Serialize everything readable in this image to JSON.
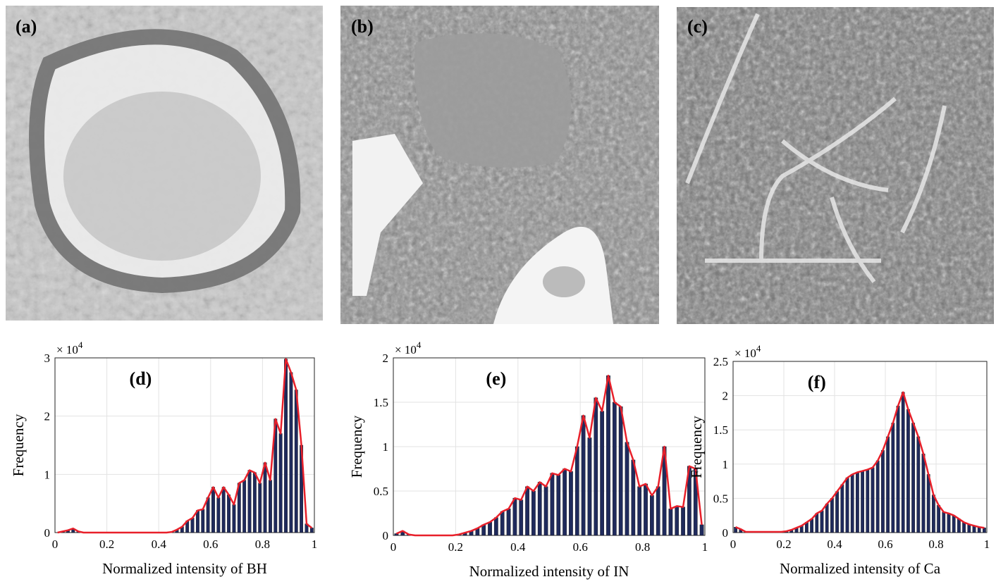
{
  "panels": [
    {
      "label": "(a)"
    },
    {
      "label": "(b)"
    },
    {
      "label": "(c)"
    }
  ],
  "chart_data": [
    {
      "type": "histogram",
      "title": "(d)",
      "y_multiplier": "× 10",
      "y_exponent": "4",
      "xlabel": "Normalized intensity of BH",
      "ylabel": "Frequency",
      "bins": [
        0,
        0.02,
        0.04,
        0.06,
        0.08,
        0.1,
        0.12,
        0.14,
        0.16,
        0.18,
        0.2,
        0.22,
        0.24,
        0.26,
        0.28,
        0.3,
        0.32,
        0.34,
        0.36,
        0.38,
        0.4,
        0.42,
        0.44,
        0.46,
        0.48,
        0.5,
        0.52,
        0.54,
        0.56,
        0.58,
        0.6,
        0.62,
        0.64,
        0.66,
        0.68,
        0.7,
        0.72,
        0.74,
        0.76,
        0.78,
        0.8,
        0.82,
        0.84,
        0.86,
        0.88,
        0.9,
        0.92,
        0.94,
        0.96,
        0.98,
        1
      ],
      "values": [
        0,
        0.02,
        0.04,
        0.07,
        0.02,
        0,
        0,
        0,
        0,
        0,
        0,
        0,
        0,
        0,
        0,
        0,
        0,
        0,
        0,
        0,
        0,
        0,
        0.01,
        0.05,
        0.1,
        0.2,
        0.25,
        0.38,
        0.4,
        0.6,
        0.78,
        0.6,
        0.78,
        0.65,
        0.48,
        0.85,
        0.9,
        1.07,
        1.03,
        0.85,
        1.2,
        0.9,
        1.95,
        1.7,
        2.98,
        2.75,
        2.45,
        1.5,
        0.15,
        0.08
      ],
      "color": "#1f2a5c",
      "line_color": "#e8202a",
      "xlim": [
        0,
        1
      ],
      "xticks": [
        0,
        0.2,
        0.4,
        0.6,
        0.8,
        1
      ],
      "ylim": [
        0,
        3
      ],
      "yticks": [
        0,
        1,
        2,
        3
      ],
      "grid": true
    },
    {
      "type": "histogram",
      "title": "(e)",
      "y_multiplier": "× 10",
      "y_exponent": "4",
      "xlabel": "Normalized intensity of IN",
      "ylabel": "Frequency",
      "bins": [
        0,
        0.02,
        0.04,
        0.06,
        0.08,
        0.1,
        0.12,
        0.14,
        0.16,
        0.18,
        0.2,
        0.22,
        0.24,
        0.26,
        0.28,
        0.3,
        0.32,
        0.34,
        0.36,
        0.38,
        0.4,
        0.42,
        0.44,
        0.46,
        0.48,
        0.5,
        0.52,
        0.54,
        0.56,
        0.58,
        0.6,
        0.62,
        0.64,
        0.66,
        0.68,
        0.7,
        0.72,
        0.74,
        0.76,
        0.78,
        0.8,
        0.82,
        0.84,
        0.86,
        0.88,
        0.9,
        0.92,
        0.94,
        0.96,
        0.98,
        1
      ],
      "values": [
        0.02,
        0.05,
        0.01,
        0,
        0,
        0,
        0,
        0,
        0,
        0,
        0.01,
        0.03,
        0.05,
        0.08,
        0.12,
        0.15,
        0.2,
        0.27,
        0.3,
        0.42,
        0.4,
        0.55,
        0.5,
        0.6,
        0.55,
        0.7,
        0.68,
        0.75,
        0.72,
        1.0,
        1.35,
        1.1,
        1.55,
        1.4,
        1.8,
        1.5,
        1.45,
        1.05,
        0.85,
        0.55,
        0.58,
        0.45,
        0.55,
        1.0,
        0.3,
        0.33,
        0.32,
        0.78,
        0.75,
        0.12
      ],
      "color": "#1f2a5c",
      "line_color": "#e8202a",
      "xlim": [
        0,
        1
      ],
      "xticks": [
        0,
        0.2,
        0.4,
        0.6,
        0.8,
        1
      ],
      "ylim": [
        0,
        2
      ],
      "yticks": [
        0,
        0.5,
        1,
        1.5,
        2
      ],
      "grid": true
    },
    {
      "type": "histogram",
      "title": "(f)",
      "y_multiplier": "× 10",
      "y_exponent": "4",
      "xlabel": "Normalized intensity of Ca",
      "ylabel": "Frequency",
      "bins": [
        0,
        0.02,
        0.04,
        0.06,
        0.08,
        0.1,
        0.12,
        0.14,
        0.16,
        0.18,
        0.2,
        0.22,
        0.24,
        0.26,
        0.28,
        0.3,
        0.32,
        0.34,
        0.36,
        0.38,
        0.4,
        0.42,
        0.44,
        0.46,
        0.48,
        0.5,
        0.52,
        0.54,
        0.56,
        0.58,
        0.6,
        0.62,
        0.64,
        0.66,
        0.68,
        0.7,
        0.72,
        0.74,
        0.76,
        0.78,
        0.8,
        0.82,
        0.84,
        0.86,
        0.88,
        0.9,
        0.92,
        0.94,
        0.96,
        0.98,
        1
      ],
      "values": [
        0.08,
        0.05,
        0.01,
        0.01,
        0.01,
        0.01,
        0.01,
        0.01,
        0.01,
        0.01,
        0.02,
        0.04,
        0.07,
        0.1,
        0.15,
        0.2,
        0.28,
        0.32,
        0.42,
        0.5,
        0.6,
        0.7,
        0.8,
        0.85,
        0.88,
        0.9,
        0.92,
        0.95,
        1.05,
        1.2,
        1.4,
        1.6,
        1.85,
        2.05,
        1.8,
        1.6,
        1.4,
        1.15,
        0.85,
        0.55,
        0.4,
        0.3,
        0.28,
        0.25,
        0.2,
        0.15,
        0.12,
        0.1,
        0.08,
        0.07
      ],
      "color": "#1f2a5c",
      "line_color": "#e8202a",
      "xlim": [
        0,
        1
      ],
      "xticks": [
        0,
        0.2,
        0.4,
        0.6,
        0.8,
        1
      ],
      "ylim": [
        0,
        2.5
      ],
      "yticks": [
        0,
        0.5,
        1,
        1.5,
        2,
        2.5
      ],
      "grid": true
    }
  ]
}
